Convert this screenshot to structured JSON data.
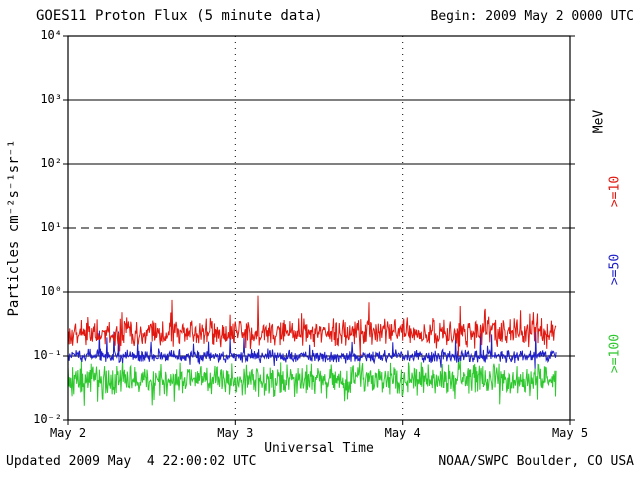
{
  "header": {
    "title": "GOES11 Proton Flux (5 minute data)",
    "begin_label": "Begin: 2009 May 2 0000 UTC"
  },
  "footer": {
    "updated": "Updated 2009 May  4 22:00:02 UTC",
    "source": "NOAA/SWPC Boulder, CO USA"
  },
  "chart_data": {
    "type": "line",
    "title": "GOES11 Proton Flux (5 minute data)",
    "x_axis": {
      "label": "Universal Time",
      "range_days": [
        0,
        3
      ],
      "data_end_day": 2.9167,
      "sample_interval_minutes": 5,
      "ticks": [
        {
          "label": "May 2",
          "day": 0
        },
        {
          "label": "May 3",
          "day": 1
        },
        {
          "label": "May 4",
          "day": 2
        },
        {
          "label": "May 5",
          "day": 3
        }
      ]
    },
    "y_axis": {
      "label": "Particles cm⁻²s⁻¹sr⁻¹",
      "unit": "MeV",
      "scale": "log10",
      "range": [
        0.01,
        10000
      ],
      "ticks": [
        {
          "label": "10⁴",
          "value": 10000
        },
        {
          "label": "10³",
          "value": 1000
        },
        {
          "label": "10²",
          "value": 100
        },
        {
          "label": "10¹",
          "value": 10
        },
        {
          "label": "10⁰",
          "value": 1
        },
        {
          "label": "10⁻¹",
          "value": 0.1
        },
        {
          "label": "10⁻²",
          "value": 0.01
        }
      ]
    },
    "grid": {
      "solid_hlines": [
        1000,
        100,
        1,
        0.1
      ],
      "dashed_hlines": [
        10
      ],
      "dotted_vlines_days": [
        1,
        2
      ]
    },
    "series": [
      {
        "name": "Protons >=10 MeV",
        "label": ">=10",
        "color": "#e01810",
        "baseline": 0.23,
        "observed_min": 0.1,
        "observed_max": 0.88,
        "log_spread": 0.26,
        "spike_prob": 0.04,
        "spike_log_max": 0.45,
        "dip_prob": 0.02,
        "dip_log_max": 0.2,
        "seed": 101
      },
      {
        "name": "Protons >=50 MeV",
        "label": ">=50",
        "color": "#2020c8",
        "baseline": 0.1,
        "observed_min": 0.055,
        "observed_max": 0.3,
        "log_spread": 0.12,
        "spike_prob": 0.03,
        "spike_log_max": 0.4,
        "dip_prob": 0.02,
        "dip_log_max": 0.2,
        "seed": 202
      },
      {
        "name": "Protons >=100 MeV",
        "label": ">=100",
        "color": "#2ec82e",
        "baseline": 0.042,
        "observed_min": 0.013,
        "observed_max": 0.105,
        "log_spread": 0.28,
        "spike_prob": 0.03,
        "spike_log_max": 0.25,
        "dip_prob": 0.05,
        "dip_log_max": 0.35,
        "seed": 303
      }
    ]
  }
}
